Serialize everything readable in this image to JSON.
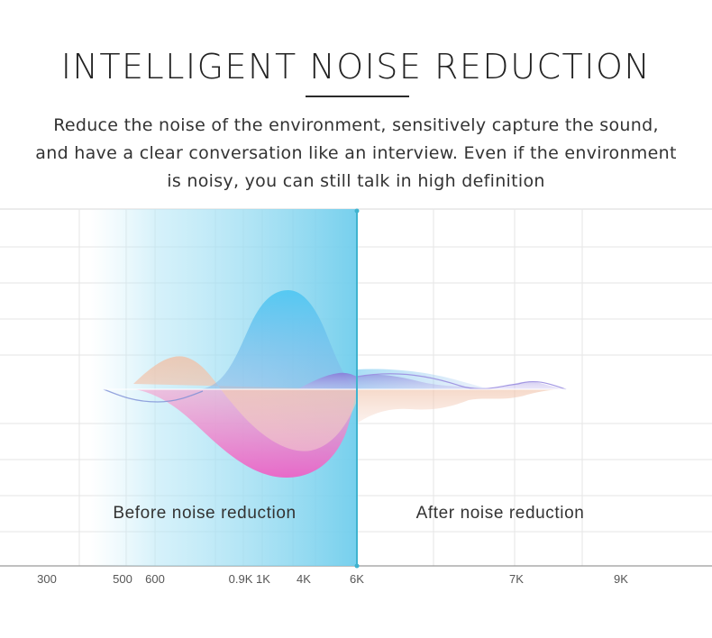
{
  "header": {
    "title": "INTELLIGENT NOISE REDUCTION",
    "description_lines": [
      "Reduce the noise of the environment, sensitively capture the sound,",
      "and have a clear conversation like an interview. Even if the environment",
      "is noisy, you can still talk in high definition"
    ]
  },
  "diagram": {
    "before_label": "Before noise reduction",
    "after_label": "After noise reduction",
    "frequency_ticks": [
      "300",
      "500",
      "600",
      "0.9K",
      "1K",
      "4K",
      "6K",
      "7K",
      "9K"
    ],
    "colors": {
      "grid": "#e3e3e3",
      "divider": "#3fb3cf",
      "highlight": "#7fd3ee",
      "wave_blue": "#5cc6ef",
      "wave_pink": "#f06cc8",
      "wave_peach": "#f2c7a8",
      "wave_purple": "#8878d6",
      "text": "#333333",
      "tick_text": "#555555"
    }
  }
}
